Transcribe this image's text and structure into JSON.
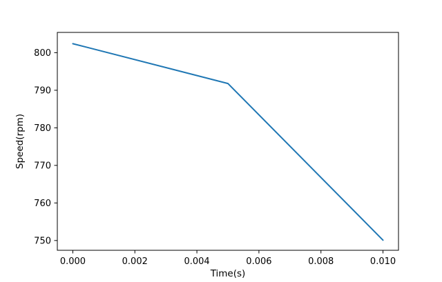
{
  "figure": {
    "background": "#ffffff",
    "spine_color": "#000000",
    "tick_color": "#000000",
    "text_color": "#000000"
  },
  "chart_data": {
    "type": "line",
    "title": "",
    "xlabel": "Time(s)",
    "ylabel": "Speed(rpm)",
    "x": [
      0.0,
      0.005,
      0.01
    ],
    "series": [
      {
        "name": "speed",
        "color": "#1f77b4",
        "values": [
          802.4,
          791.8,
          750.1
        ]
      }
    ],
    "xlim": [
      -0.0005,
      0.0105
    ],
    "ylim": [
      747.4,
      805.4
    ],
    "xticks": {
      "values": [
        0.0,
        0.002,
        0.004,
        0.006,
        0.008,
        0.01
      ],
      "labels": [
        "0.000",
        "0.002",
        "0.004",
        "0.006",
        "0.008",
        "0.010"
      ]
    },
    "yticks": {
      "values": [
        750,
        760,
        770,
        780,
        790,
        800
      ],
      "labels": [
        "750",
        "760",
        "770",
        "780",
        "790",
        "800"
      ]
    },
    "grid": false,
    "legend": "none"
  }
}
